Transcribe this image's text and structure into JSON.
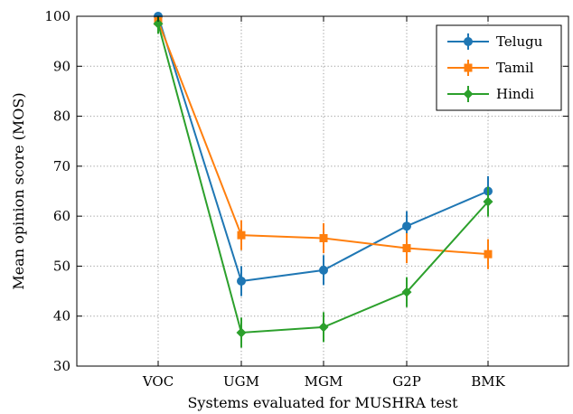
{
  "chart_data": {
    "type": "line",
    "xlabel": "Systems evaluated for MUSHRA test",
    "ylabel": "Mean opinion score (MOS)",
    "categories": [
      "VOC",
      "UGM",
      "MGM",
      "G2P",
      "BMK"
    ],
    "ylim": [
      30,
      100
    ],
    "yticks": [
      "30",
      "40",
      "50",
      "60",
      "70",
      "80",
      "90",
      "100"
    ],
    "grid": true,
    "legend_position": "top-right",
    "series": [
      {
        "name": "Telugu",
        "color": "#1f77b4",
        "marker": "circle",
        "values": [
          100,
          47,
          49.2,
          58,
          65
        ],
        "errors": [
          2,
          3,
          3,
          3,
          3
        ]
      },
      {
        "name": "Tamil",
        "color": "#ff7f0e",
        "marker": "square",
        "values": [
          99,
          56.2,
          55.6,
          53.6,
          52.4
        ],
        "errors": [
          2,
          3,
          3,
          3,
          3
        ]
      },
      {
        "name": "Hindi",
        "color": "#2ca02c",
        "marker": "diamond",
        "values": [
          98.5,
          36.7,
          37.8,
          44.8,
          62.9
        ],
        "errors": [
          2,
          3,
          3,
          3,
          3
        ]
      }
    ]
  }
}
